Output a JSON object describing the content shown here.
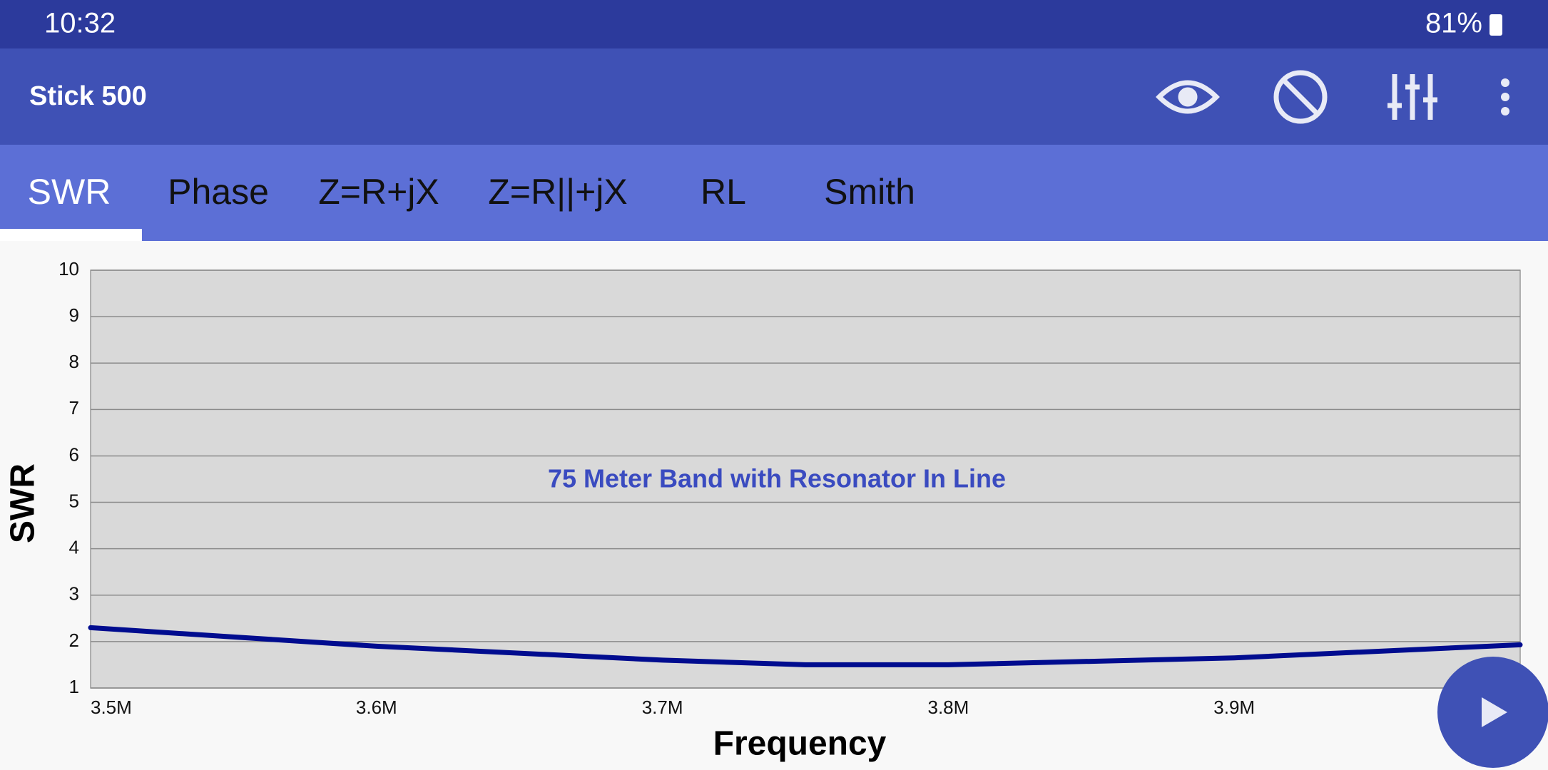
{
  "status_bar": {
    "time": "10:32",
    "battery": "81%"
  },
  "toolbar": {
    "title": "Stick 500"
  },
  "tabs": [
    "SWR",
    "Phase",
    "Z=R+jX",
    "Z=R||+jX",
    "RL",
    "Smith"
  ],
  "chart_data": {
    "type": "line",
    "annotation": "75 Meter Band with Resonator In Line",
    "x_label": "Frequency",
    "y_label": "SWR",
    "x": [
      3.5,
      3.6,
      3.7,
      3.75,
      3.8,
      3.9,
      4.0
    ],
    "values": [
      2.3,
      1.9,
      1.6,
      1.5,
      1.5,
      1.65,
      1.93
    ],
    "color": "#000c8f",
    "xlim": [
      3.5,
      4.0
    ],
    "xticks": [
      {
        "value": 3.5,
        "label": "3.5M"
      },
      {
        "value": 3.6,
        "label": "3.6M"
      },
      {
        "value": 3.7,
        "label": "3.7M"
      },
      {
        "value": 3.8,
        "label": "3.8M"
      },
      {
        "value": 3.9,
        "label": "3.9M"
      }
    ],
    "ylim": [
      1,
      10
    ],
    "yticks": [
      1,
      2,
      3,
      4,
      5,
      6,
      7,
      8,
      9,
      10
    ],
    "grid": true
  }
}
